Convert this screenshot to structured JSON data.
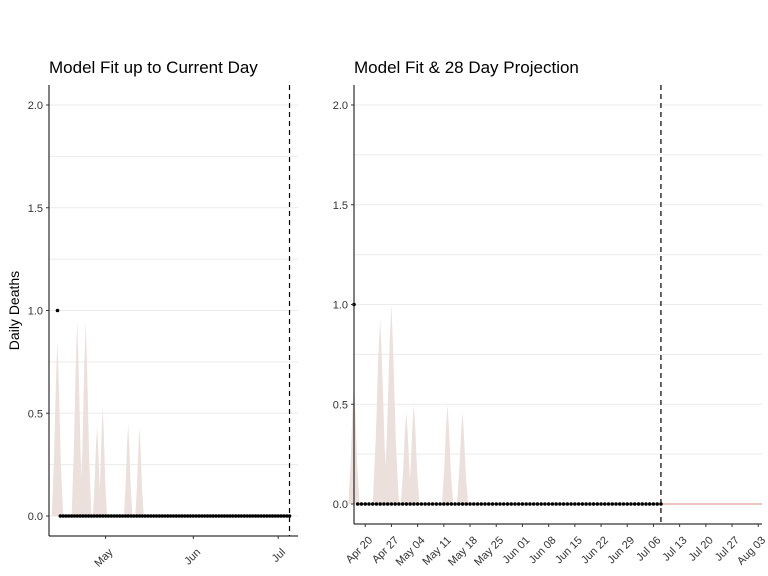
{
  "chart_data": [
    {
      "type": "line",
      "title": "Model Fit up to Current Day",
      "ylabel": "Daily Deaths",
      "xlabel": "",
      "ylim": [
        0,
        2
      ],
      "y_ticks": [
        "0.0",
        "0.5",
        "1.0",
        "1.5",
        "2.0"
      ],
      "y_tick_values": [
        0,
        0.5,
        1,
        1.5,
        2
      ],
      "x_ticks": [
        "May",
        "Jun",
        "Jul"
      ],
      "x_tick_values": [
        17,
        48,
        78
      ],
      "x_range": [
        -3,
        85
      ],
      "current_day": 82,
      "grid": true,
      "series": [
        {
          "kind": "observed_points",
          "color": "#000000",
          "x_start": 0,
          "x_end": 82,
          "values_note_zero_except": [
            [
              0,
              1
            ]
          ]
        },
        {
          "kind": "model_ribbon",
          "color": "#ece0dc",
          "peaks": [
            {
              "x": 0,
              "hi": 0.85,
              "width": 2
            },
            {
              "x": 7,
              "hi": 0.95,
              "width": 2
            },
            {
              "x": 10,
              "hi": 0.94,
              "width": 2
            },
            {
              "x": 14,
              "hi": 0.44,
              "width": 1.5
            },
            {
              "x": 16,
              "hi": 0.53,
              "width": 1.5
            },
            {
              "x": 25,
              "hi": 0.45,
              "width": 1.5
            },
            {
              "x": 29,
              "hi": 0.43,
              "width": 1.5
            }
          ]
        }
      ]
    },
    {
      "type": "line",
      "title": "Model Fit & 28 Day Projection",
      "ylabel": "",
      "xlabel": "",
      "ylim": [
        0,
        2
      ],
      "y_ticks": [
        "0.0",
        "0.5",
        "1.0",
        "1.5",
        "2.0"
      ],
      "y_tick_values": [
        0,
        0.5,
        1,
        1.5,
        2
      ],
      "x_ticks": [
        "Apr 20",
        "Apr 27",
        "May 04",
        "May 11",
        "May 18",
        "May 25",
        "Jun 01",
        "Jun 08",
        "Jun 15",
        "Jun 22",
        "Jun 29",
        "Jul 06",
        "Jul 13",
        "Jul 20",
        "Jul 27",
        "Aug 03"
      ],
      "x_tick_values": [
        3,
        10,
        17,
        24,
        31,
        38,
        45,
        52,
        59,
        66,
        73,
        80,
        87,
        94,
        101,
        108
      ],
      "x_range": [
        0,
        109
      ],
      "current_day": 82,
      "projection_end": 110,
      "grid": true,
      "series": [
        {
          "kind": "observed_points",
          "color": "#000000",
          "x_start": 0,
          "x_end": 82,
          "values_note_zero_except": [
            [
              0,
              1
            ]
          ]
        },
        {
          "kind": "projection_line",
          "color": "#e48a8a",
          "x_start": 82,
          "x_end": 110,
          "value": 0
        },
        {
          "kind": "model_ribbon",
          "color": "#ece0dc",
          "peaks": [
            {
              "x": 0,
              "hi": 0.6,
              "width": 1.5
            },
            {
              "x": 7,
              "hi": 0.93,
              "width": 2
            },
            {
              "x": 10,
              "hi": 1.0,
              "width": 2
            },
            {
              "x": 14,
              "hi": 0.46,
              "width": 1.5
            },
            {
              "x": 16,
              "hi": 0.5,
              "width": 1.5
            },
            {
              "x": 25,
              "hi": 0.5,
              "width": 1.5
            },
            {
              "x": 29,
              "hi": 0.46,
              "width": 1.5
            }
          ]
        }
      ]
    }
  ]
}
